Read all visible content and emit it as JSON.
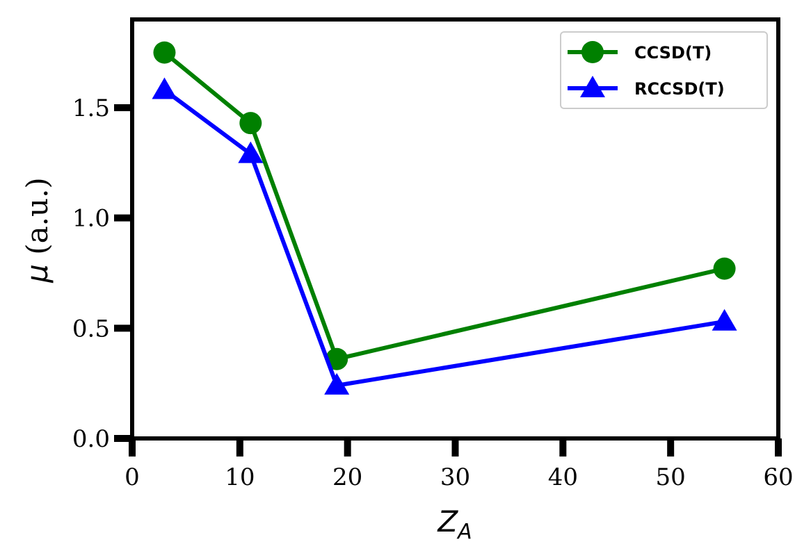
{
  "chart_data": {
    "type": "line",
    "title": "",
    "xlabel": {
      "base": "Z",
      "sub": "A"
    },
    "ylabel": {
      "symbol": "μ",
      "unit": " (a.u.)"
    },
    "xlim": [
      0,
      60
    ],
    "ylim": [
      0,
      1.9
    ],
    "xticks": [
      0,
      10,
      20,
      30,
      40,
      50,
      60
    ],
    "xtick_labels": [
      "0",
      "10",
      "20",
      "30",
      "40",
      "50",
      "60"
    ],
    "yticks": [
      0.0,
      0.5,
      1.0,
      1.5
    ],
    "ytick_labels": [
      "0.0",
      "0.5",
      "1.0",
      "1.5"
    ],
    "grid": false,
    "legend_position": "top-right",
    "x": [
      3,
      11,
      19,
      55
    ],
    "series": [
      {
        "name": "CCSD(T)",
        "color": "#008000",
        "marker": "circle",
        "values": [
          1.75,
          1.43,
          0.36,
          0.77
        ]
      },
      {
        "name": "RCCSD(T)",
        "color": "#0000ff",
        "marker": "triangle",
        "values": [
          1.58,
          1.29,
          0.24,
          0.53
        ]
      }
    ]
  }
}
